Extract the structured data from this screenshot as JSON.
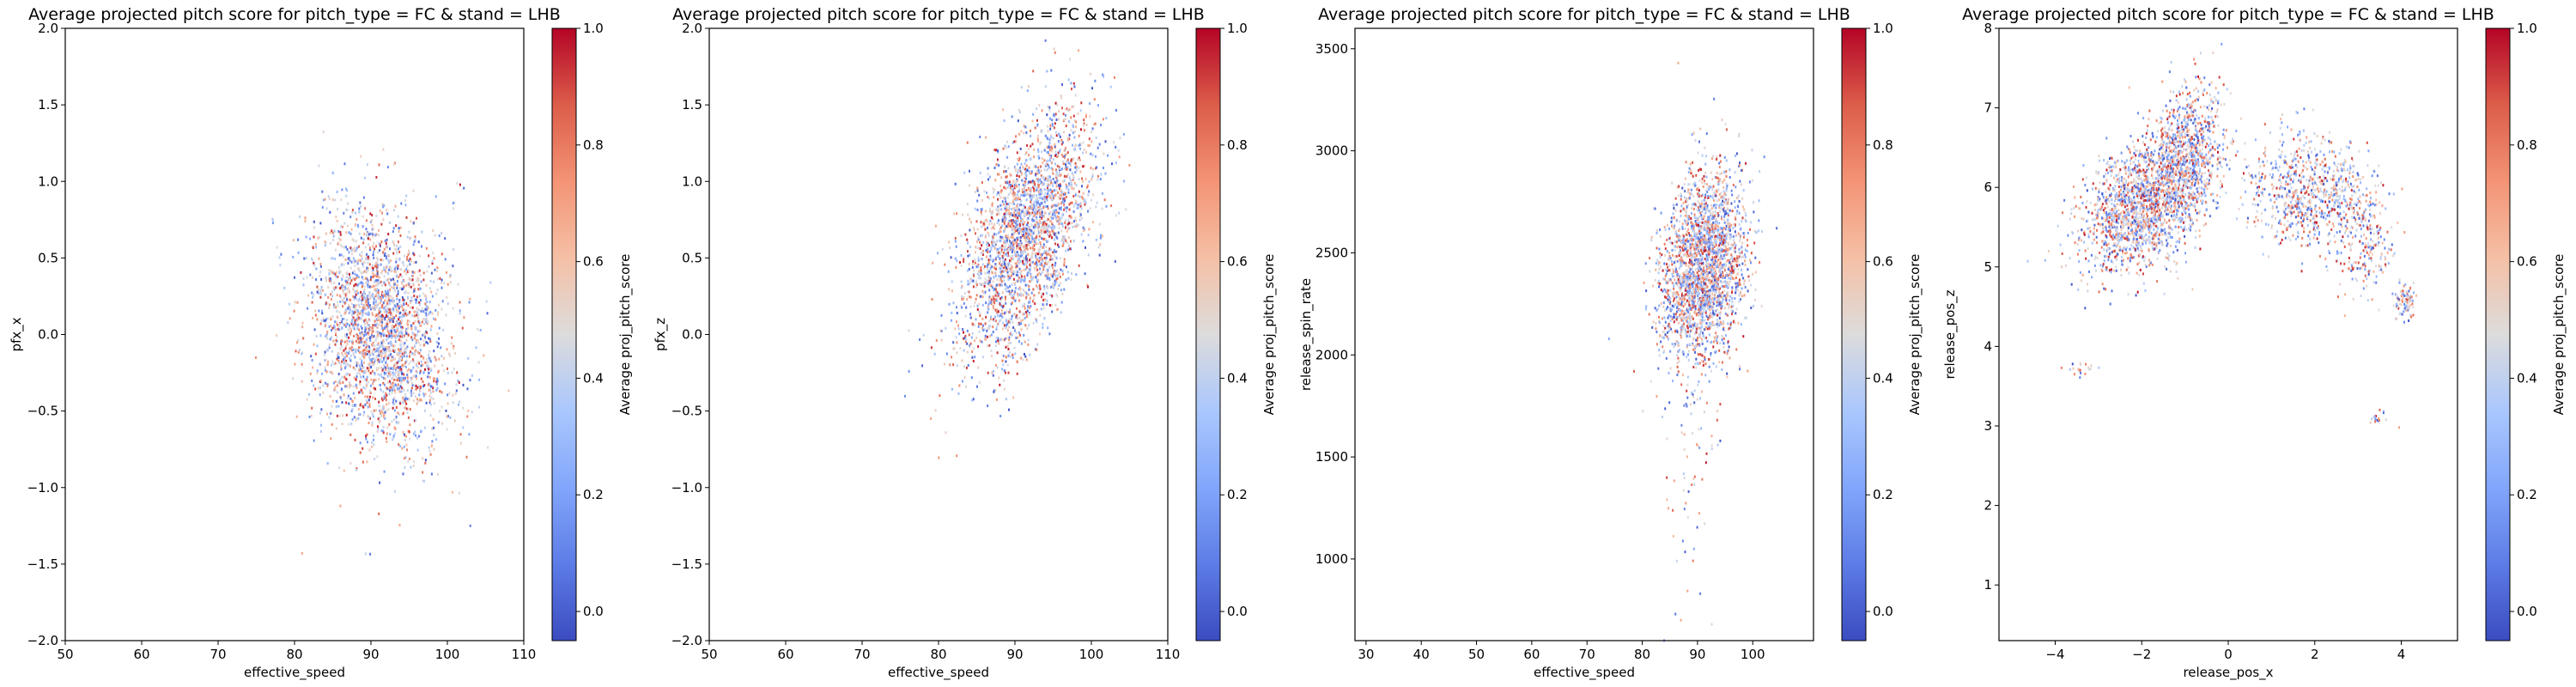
{
  "chart_data": [
    {
      "type": "scatter",
      "title": "Average projected pitch score for pitch_type = FC & stand = LHB",
      "xlabel": "effective_speed",
      "ylabel": "pfx_x",
      "xlim": [
        50,
        110
      ],
      "ylim": [
        -2.0,
        2.0
      ],
      "xticks": [
        "50",
        "60",
        "70",
        "80",
        "90",
        "100",
        "110"
      ],
      "yticks": [
        "−2.0",
        "−1.5",
        "−1.0",
        "−0.5",
        "0.0",
        "0.5",
        "1.0",
        "1.5",
        "2.0"
      ],
      "grid": false,
      "color_by": "proj_pitch_score",
      "colormap": "coolwarm",
      "colorbar": {
        "label": "Average proj_pitch_score",
        "range": [
          -0.05,
          1.0
        ],
        "ticks": [
          "0.0",
          "0.2",
          "0.4",
          "0.6",
          "0.8",
          "1.0"
        ]
      },
      "clusters": [
        {
          "x_center": 91,
          "y_center": 0.05,
          "x_spread": 4.5,
          "y_spread": 0.38,
          "corr": -0.15,
          "n": 2600
        }
      ],
      "outliers": [
        {
          "x": 81,
          "y": -1.43
        },
        {
          "x": 103,
          "y": -1.25
        },
        {
          "x": 86,
          "y": -1.12
        }
      ]
    },
    {
      "type": "scatter",
      "title": "Average projected pitch score for pitch_type = FC & stand = LHB",
      "xlabel": "effective_speed",
      "ylabel": "pfx_z",
      "xlim": [
        50,
        110
      ],
      "ylim": [
        -2.0,
        2.0
      ],
      "xticks": [
        "50",
        "60",
        "70",
        "80",
        "90",
        "100",
        "110"
      ],
      "yticks": [
        "−2.0",
        "−1.5",
        "−1.0",
        "−0.5",
        "0.0",
        "0.5",
        "1.0",
        "1.5",
        "2.0"
      ],
      "grid": false,
      "color_by": "proj_pitch_score",
      "colormap": "coolwarm",
      "colorbar": {
        "label": "Average proj_pitch_score",
        "range": [
          -0.05,
          1.0
        ],
        "ticks": [
          "0.0",
          "0.2",
          "0.4",
          "0.6",
          "0.8",
          "1.0"
        ]
      },
      "clusters": [
        {
          "x_center": 91.5,
          "y_center": 0.65,
          "x_spread": 4.3,
          "y_spread": 0.4,
          "corr": 0.55,
          "n": 2600
        }
      ],
      "outliers": [
        {
          "x": 79,
          "y": -0.55
        },
        {
          "x": 94,
          "y": 1.92
        }
      ]
    },
    {
      "type": "scatter",
      "title": "Average projected pitch score for pitch_type = FC & stand = LHB",
      "xlabel": "effective_speed",
      "ylabel": "release_spin_rate",
      "xlim": [
        28,
        111
      ],
      "ylim": [
        600,
        3600
      ],
      "xticks": [
        "30",
        "40",
        "50",
        "60",
        "70",
        "80",
        "90",
        "100"
      ],
      "yticks": [
        "1000",
        "1500",
        "2000",
        "2500",
        "3000",
        "3500"
      ],
      "grid": false,
      "color_by": "proj_pitch_score",
      "colormap": "coolwarm",
      "colorbar": {
        "label": "Average proj_pitch_score",
        "range": [
          -0.05,
          1.0
        ],
        "ticks": [
          "0.0",
          "0.2",
          "0.4",
          "0.6",
          "0.8",
          "1.0"
        ]
      },
      "clusters": [
        {
          "x_center": 91,
          "y_center": 2420,
          "x_spread": 3.8,
          "y_spread": 230,
          "corr": 0.25,
          "n": 2400
        },
        {
          "x_center": 89,
          "y_center": 1450,
          "x_spread": 3.2,
          "y_spread": 280,
          "corr": 0.0,
          "n": 60
        }
      ],
      "outliers": [
        {
          "x": 86.5,
          "y": 3430
        },
        {
          "x": 86,
          "y": 730
        },
        {
          "x": 87,
          "y": 700
        },
        {
          "x": 90.5,
          "y": 830
        }
      ]
    },
    {
      "type": "scatter",
      "title": "Average projected pitch score for pitch_type = FC & stand = LHB",
      "xlabel": "release_pos_x",
      "ylabel": "release_pos_z",
      "xlim": [
        -5.3,
        5.3
      ],
      "ylim": [
        0.3,
        8.0
      ],
      "xticks": [
        "−4",
        "−2",
        "0",
        "2",
        "4"
      ],
      "yticks": [
        "1",
        "2",
        "3",
        "4",
        "5",
        "6",
        "7",
        "8"
      ],
      "grid": false,
      "color_by": "proj_pitch_score",
      "colormap": "coolwarm",
      "colorbar": {
        "label": "Average proj_pitch_score",
        "range": [
          -0.05,
          1.0
        ],
        "ticks": [
          "0.0",
          "0.2",
          "0.4",
          "0.6",
          "0.8",
          "1.0"
        ]
      },
      "clusters": [
        {
          "x_center": -2.1,
          "y_center": 5.75,
          "x_spread": 0.65,
          "y_spread": 0.4,
          "corr": 0.3,
          "n": 1500
        },
        {
          "x_center": -1.0,
          "y_center": 6.35,
          "x_spread": 0.45,
          "y_spread": 0.45,
          "corr": 0.3,
          "n": 1000
        },
        {
          "x_center": 1.9,
          "y_center": 5.95,
          "x_spread": 0.75,
          "y_spread": 0.35,
          "corr": -0.1,
          "n": 800
        },
        {
          "x_center": 3.2,
          "y_center": 5.3,
          "x_spread": 0.35,
          "y_spread": 0.35,
          "corr": 0.0,
          "n": 200
        },
        {
          "x_center": 4.1,
          "y_center": 4.55,
          "x_spread": 0.12,
          "y_spread": 0.1,
          "corr": 0.0,
          "n": 90
        },
        {
          "x_center": -3.5,
          "y_center": 3.72,
          "x_spread": 0.2,
          "y_spread": 0.05,
          "corr": 0.0,
          "n": 20
        },
        {
          "x_center": 3.45,
          "y_center": 3.12,
          "x_spread": 0.1,
          "y_spread": 0.05,
          "corr": 0.0,
          "n": 15
        }
      ],
      "outliers": [
        {
          "x": 3.95,
          "y": 2.98
        }
      ]
    }
  ]
}
